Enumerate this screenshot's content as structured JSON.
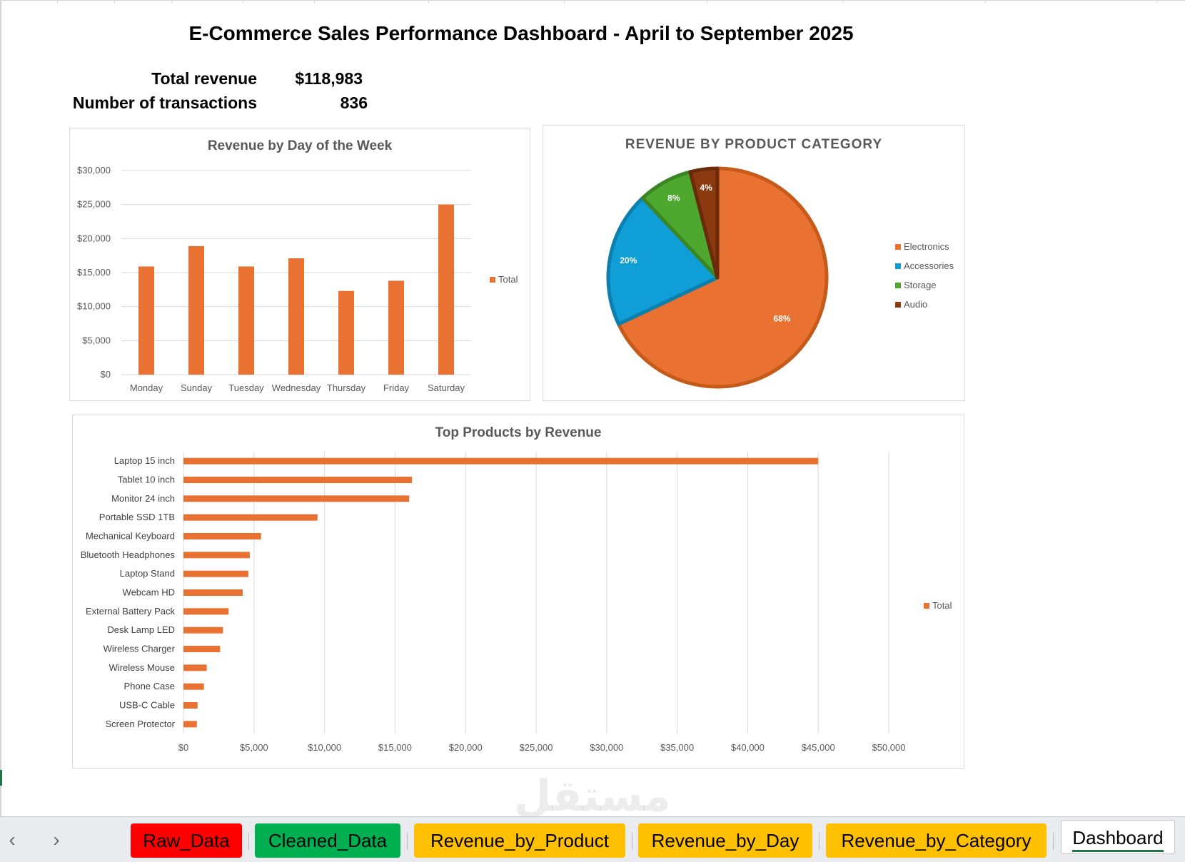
{
  "dashboard": {
    "title": "E-Commerce Sales Performance Dashboard - April to September 2025",
    "kpis": {
      "revenue_label": "Total revenue",
      "revenue_value": "$118,983",
      "transactions_label": "Number of transactions",
      "transactions_value": "836"
    }
  },
  "chart_data": [
    {
      "type": "bar",
      "title": "Revenue by Day of the Week",
      "categories": [
        "Monday",
        "Sunday",
        "Tuesday",
        "Wednesday",
        "Thursday",
        "Friday",
        "Saturday"
      ],
      "values": [
        15900,
        18900,
        15900,
        17100,
        12300,
        13800,
        25000
      ],
      "series_name": "Total",
      "ylim": [
        0,
        30000
      ],
      "yticks": [
        "$0",
        "$5,000",
        "$10,000",
        "$15,000",
        "$20,000",
        "$25,000",
        "$30,000"
      ],
      "grid": true,
      "legend": "right",
      "color": "#e97132"
    },
    {
      "type": "pie",
      "title": "REVENUE BY PRODUCT CATEGORY",
      "labels": [
        "Electronics",
        "Accessories",
        "Storage",
        "Audio"
      ],
      "values": [
        68,
        20,
        8,
        4
      ],
      "value_labels": [
        "68%",
        "20%",
        "8%",
        "4%"
      ],
      "colors": [
        "#e97132",
        "#0f9ed5",
        "#4ea72e",
        "#8b3a10"
      ],
      "legend": "right"
    },
    {
      "type": "bar",
      "orientation": "horizontal",
      "title": "Top Products by Revenue",
      "categories": [
        "Laptop 15 inch",
        "Tablet 10 inch",
        "Monitor 24 inch",
        "Portable SSD 1TB",
        "Mechanical Keyboard",
        "Bluetooth Headphones",
        "Laptop Stand",
        "Webcam HD",
        "External Battery Pack",
        "Desk Lamp LED",
        "Wireless Charger",
        "Wireless Mouse",
        "Phone Case",
        "USB-C Cable",
        "Screen Protector"
      ],
      "values": [
        45000,
        16200,
        16000,
        9500,
        5500,
        4700,
        4600,
        4200,
        3200,
        2800,
        2600,
        1650,
        1450,
        1000,
        950
      ],
      "series_name": "Total",
      "xlim": [
        0,
        50000
      ],
      "xticks": [
        "$0",
        "$5,000",
        "$10,000",
        "$15,000",
        "$20,000",
        "$25,000",
        "$30,000",
        "$35,000",
        "$40,000",
        "$45,000",
        "$50,000"
      ],
      "grid": true,
      "legend": "right",
      "color": "#e97132"
    }
  ],
  "sheet_tabs": {
    "prev_arrow": "‹",
    "next_arrow": "›",
    "tabs": [
      {
        "label": "Raw_Data",
        "color": "#ff0000"
      },
      {
        "label": "Cleaned_Data",
        "color": "#00b050"
      },
      {
        "label": "Revenue_by_Product",
        "color": "#ffc000"
      },
      {
        "label": "Revenue_by_Day",
        "color": "#ffc000"
      },
      {
        "label": "Revenue_by_Category",
        "color": "#ffc000"
      },
      {
        "label": "Dashboard",
        "color": "#ffffff"
      }
    ]
  }
}
